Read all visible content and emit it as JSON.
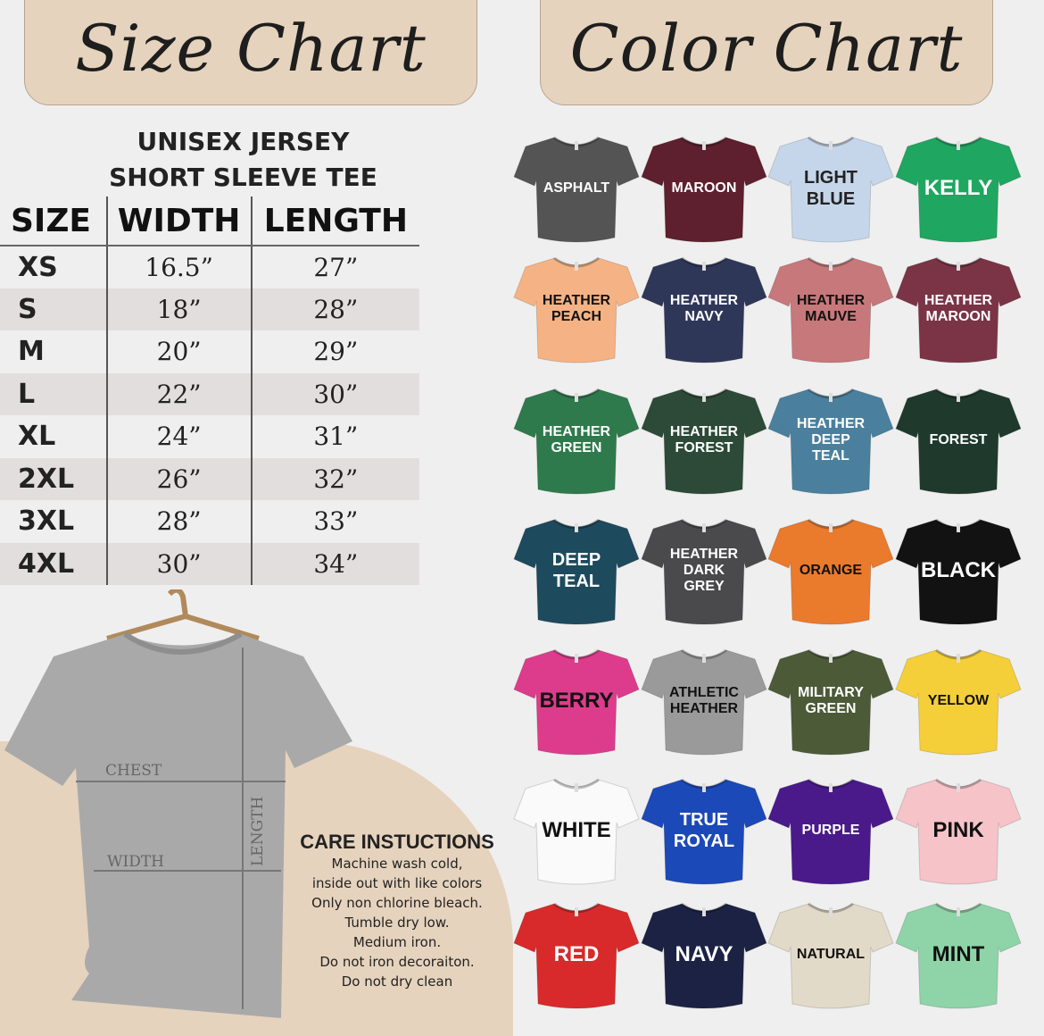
{
  "size_chart": {
    "banner": "Size Chart",
    "title_line1": "UNISEX JERSEY",
    "title_line2": "SHORT SLEEVE TEE",
    "columns": [
      "SIZE",
      "WIDTH",
      "LENGTH"
    ],
    "rows": [
      [
        "XS",
        "16.5”",
        "27”"
      ],
      [
        "S",
        "18”",
        "28”"
      ],
      [
        "M",
        "20”",
        "29”"
      ],
      [
        "L",
        "22”",
        "30”"
      ],
      [
        "XL",
        "24”",
        "31”"
      ],
      [
        "2XL",
        "26”",
        "32”"
      ],
      [
        "3XL",
        "28”",
        "33”"
      ],
      [
        "4XL",
        "30”",
        "34”"
      ]
    ],
    "measure_labels": {
      "chest": "CHEST",
      "width": "WIDTH",
      "length": "LENGTH"
    }
  },
  "care": {
    "title": "CARE INSTUCTIONS",
    "lines": [
      "Machine wash cold,",
      "inside out with like colors",
      "Only non chlorine bleach.",
      "Tumble dry low.",
      "Medium iron.",
      "Do not iron decoraiton.",
      "Do not dry clean"
    ]
  },
  "color_chart": {
    "banner": "Color Chart",
    "colors": [
      {
        "name": "ASPHALT",
        "hex": "#545454",
        "text": "#ffffff"
      },
      {
        "name": "MAROON",
        "hex": "#5e1f2e",
        "text": "#ffffff"
      },
      {
        "name": "LIGHT\nBLUE",
        "hex": "#c6d6ea",
        "text": "#222222"
      },
      {
        "name": "KELLY",
        "hex": "#1fa660",
        "text": "#ffffff"
      },
      {
        "name": "HEATHER\nPEACH",
        "hex": "#f5b385",
        "text": "#111111"
      },
      {
        "name": "HEATHER\nNAVY",
        "hex": "#2f3759",
        "text": "#ffffff"
      },
      {
        "name": "HEATHER\nMAUVE",
        "hex": "#c7787b",
        "text": "#111111"
      },
      {
        "name": "HEATHER\nMAROON",
        "hex": "#7a3446",
        "text": "#ffffff"
      },
      {
        "name": "HEATHER\nGREEN",
        "hex": "#2f7a4c",
        "text": "#ffffff"
      },
      {
        "name": "HEATHER\nFOREST",
        "hex": "#2c4a37",
        "text": "#ffffff"
      },
      {
        "name": "HEATHER\nDEEP\nTEAL",
        "hex": "#4a809d",
        "text": "#ffffff"
      },
      {
        "name": "FOREST",
        "hex": "#1f3a2c",
        "text": "#ffffff"
      },
      {
        "name": "DEEP\nTEAL",
        "hex": "#1d4a5c",
        "text": "#ffffff"
      },
      {
        "name": "HEATHER\nDARK\nGREY",
        "hex": "#4a4a4c",
        "text": "#ffffff"
      },
      {
        "name": "ORANGE",
        "hex": "#ea7a2c",
        "text": "#111111"
      },
      {
        "name": "BLACK",
        "hex": "#121212",
        "text": "#ffffff"
      },
      {
        "name": "BERRY",
        "hex": "#dd3c8c",
        "text": "#111111"
      },
      {
        "name": "ATHLETIC\nHEATHER",
        "hex": "#9a9a9a",
        "text": "#111111"
      },
      {
        "name": "MILITARY\nGREEN",
        "hex": "#4c5a38",
        "text": "#ffffff"
      },
      {
        "name": "YELLOW",
        "hex": "#f5cf3a",
        "text": "#111111"
      },
      {
        "name": "WHITE",
        "hex": "#fafafa",
        "text": "#111111"
      },
      {
        "name": "TRUE\nROYAL",
        "hex": "#1c49b8",
        "text": "#ffffff"
      },
      {
        "name": "PURPLE",
        "hex": "#4a1a8a",
        "text": "#ffffff"
      },
      {
        "name": "PINK",
        "hex": "#f6c3c8",
        "text": "#111111"
      },
      {
        "name": "RED",
        "hex": "#d82a2a",
        "text": "#ffffff"
      },
      {
        "name": "NAVY",
        "hex": "#1c2244",
        "text": "#ffffff"
      },
      {
        "name": "NATURAL",
        "hex": "#e2dac8",
        "text": "#111111"
      },
      {
        "name": "MINT",
        "hex": "#8ed4a8",
        "text": "#111111"
      }
    ]
  }
}
